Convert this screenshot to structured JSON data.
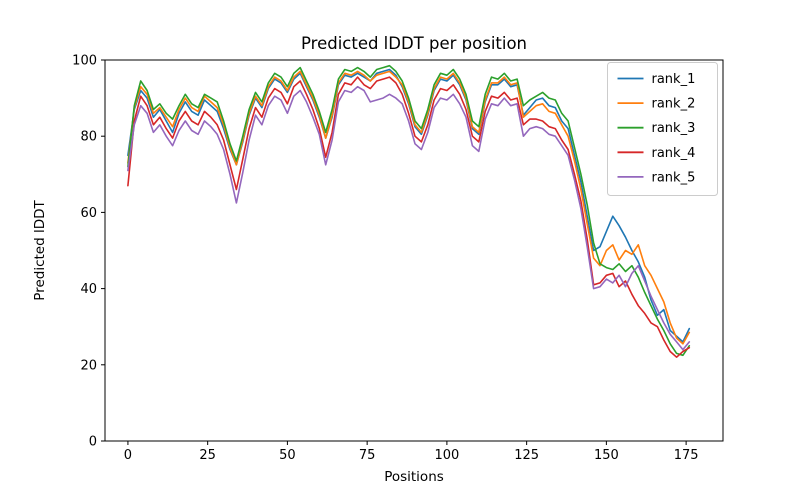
{
  "chart_data": {
    "type": "line",
    "title": "Predicted lDDT per position",
    "xlabel": "Positions",
    "ylabel": "Predicted lDDT",
    "xlim": [
      -7.1875,
      186.5625
    ],
    "ylim": [
      0,
      100
    ],
    "xticks": [
      0,
      25,
      50,
      75,
      100,
      125,
      150,
      175
    ],
    "yticks": [
      0,
      20,
      40,
      60,
      80,
      100
    ],
    "grid": false,
    "legend_position": "upper right",
    "background_color": "#ffffff",
    "x": [
      0,
      2,
      4,
      6,
      8,
      10,
      12,
      14,
      16,
      18,
      20,
      22,
      24,
      26,
      28,
      30,
      32,
      34,
      36,
      38,
      40,
      42,
      44,
      46,
      48,
      50,
      52,
      54,
      56,
      58,
      60,
      62,
      64,
      66,
      68,
      70,
      72,
      74,
      76,
      78,
      80,
      82,
      84,
      86,
      88,
      90,
      92,
      94,
      96,
      98,
      100,
      102,
      104,
      106,
      108,
      110,
      112,
      114,
      116,
      118,
      120,
      122,
      124,
      126,
      128,
      130,
      132,
      134,
      136,
      138,
      140,
      142,
      144,
      146,
      148,
      150,
      152,
      154,
      156,
      158,
      160,
      162,
      164,
      166,
      168,
      170,
      172,
      174,
      176
    ],
    "series": [
      {
        "name": "rank_1",
        "color": "#1f77b4",
        "values": [
          75,
          87,
          92,
          90,
          85,
          87,
          84,
          81,
          86,
          89,
          86.5,
          85.5,
          89.5,
          88,
          86.5,
          82,
          76.5,
          72.5,
          78.5,
          85.5,
          90,
          87.5,
          92.5,
          95,
          94,
          91.5,
          95,
          96.5,
          93,
          89.5,
          85,
          79.5,
          85,
          93.5,
          96,
          95.5,
          96.5,
          95.5,
          94.5,
          96.5,
          97,
          97.5,
          96,
          93,
          88.5,
          82.5,
          80.5,
          85.5,
          92,
          95,
          94.5,
          96,
          93.5,
          89.5,
          82,
          80.5,
          89,
          93.5,
          93.5,
          95,
          93,
          93.5,
          85.5,
          87.5,
          89.5,
          90,
          88,
          87.5,
          84,
          82,
          75,
          68,
          59,
          50,
          51,
          55,
          59,
          56.5,
          53.5,
          50,
          47,
          43,
          37,
          33,
          34.5,
          29,
          27.5,
          26,
          29.5
        ]
      },
      {
        "name": "rank_2",
        "color": "#ff7f0e",
        "values": [
          73,
          87.5,
          93,
          91,
          86,
          87.5,
          85,
          82.5,
          87,
          90,
          87.5,
          86.5,
          90.5,
          89,
          87.5,
          83,
          77,
          72.5,
          79,
          86,
          90.5,
          88,
          93,
          95.5,
          94.5,
          92,
          95.5,
          97,
          93.5,
          90,
          85.5,
          79.5,
          85.5,
          94,
          96.5,
          96,
          97,
          96,
          94.5,
          96,
          96.5,
          97,
          95.5,
          93.5,
          89,
          83,
          81,
          86,
          92.5,
          95.5,
          95,
          96.5,
          94,
          90,
          82.5,
          81,
          89.5,
          94,
          94,
          95.5,
          93.5,
          94,
          85,
          86.5,
          88,
          88.5,
          86.5,
          86,
          83,
          80,
          73.5,
          66,
          57,
          48,
          46,
          50,
          51.5,
          47.5,
          50,
          49,
          51.5,
          46,
          43.5,
          40,
          36.5,
          31,
          27,
          25.5,
          28.5
        ]
      },
      {
        "name": "rank_3",
        "color": "#2ca02c",
        "values": [
          72,
          88,
          94.5,
          92,
          87,
          88.5,
          86,
          84.5,
          88,
          91,
          88.5,
          87.5,
          91,
          90,
          89,
          84,
          78,
          73.5,
          80,
          87,
          91.5,
          89,
          94,
          96.5,
          95.5,
          93,
          96.5,
          98,
          94.5,
          91,
          86.5,
          81,
          87,
          95,
          97.5,
          97,
          98,
          97,
          95.5,
          97.5,
          98,
          98.5,
          97,
          94.5,
          90,
          84,
          82,
          87,
          93.5,
          96.5,
          96,
          97.5,
          95,
          91,
          84,
          82.5,
          91,
          95.5,
          95,
          96.5,
          94.5,
          95,
          88,
          89.5,
          90.5,
          91.5,
          90,
          89.5,
          86,
          84,
          77,
          70,
          62,
          52,
          46.5,
          45.5,
          45,
          46.5,
          44.5,
          46,
          43,
          39,
          35.5,
          32,
          29,
          25.5,
          23,
          22.5,
          25
        ]
      },
      {
        "name": "rank_4",
        "color": "#d62728",
        "values": [
          67,
          84,
          90.5,
          88,
          83,
          85,
          82,
          79.5,
          84,
          86.5,
          84,
          83,
          86.5,
          85,
          83,
          79,
          72.5,
          66,
          74,
          82,
          87.5,
          85,
          90,
          92.5,
          91.5,
          88.5,
          93,
          94.5,
          91,
          87,
          82,
          74.5,
          81,
          91,
          94,
          93.5,
          95.5,
          93.5,
          92.5,
          94.5,
          95,
          95.5,
          94,
          91,
          86,
          80,
          78.5,
          83,
          89.5,
          92.5,
          92,
          93.5,
          91,
          87,
          80,
          78.5,
          86.5,
          90.5,
          90,
          91.5,
          89.5,
          90,
          83,
          84.5,
          84.5,
          84,
          82.5,
          82,
          79,
          76.5,
          70,
          63,
          53,
          41,
          41.5,
          43.5,
          44,
          40.5,
          42,
          38.5,
          35.5,
          33.5,
          31,
          30,
          26.5,
          23.5,
          22,
          23.5,
          24.5
        ]
      },
      {
        "name": "rank_5",
        "color": "#9467bd",
        "values": [
          71,
          83,
          88,
          86,
          81,
          83,
          80,
          77.5,
          81.5,
          84,
          81.5,
          80.5,
          84,
          82.5,
          80.5,
          76.5,
          70,
          62.5,
          70.5,
          79,
          85.5,
          83,
          88,
          90.5,
          89.5,
          86,
          90.5,
          92,
          89,
          85,
          80.5,
          72.5,
          79,
          89,
          92,
          91.5,
          93,
          92,
          89,
          89.5,
          90,
          91,
          90,
          88.5,
          84,
          78,
          76.5,
          81,
          87.5,
          90,
          89.5,
          91,
          88.5,
          85,
          77.5,
          76,
          84.5,
          88.5,
          88,
          90,
          88,
          88.5,
          80,
          82,
          82.5,
          82,
          80.5,
          80,
          77.5,
          75,
          68.5,
          61,
          51,
          40,
          40.5,
          42.5,
          41.5,
          43.5,
          40.5,
          44,
          46,
          42,
          38,
          34.5,
          31,
          28,
          26,
          24,
          26
        ]
      }
    ]
  }
}
